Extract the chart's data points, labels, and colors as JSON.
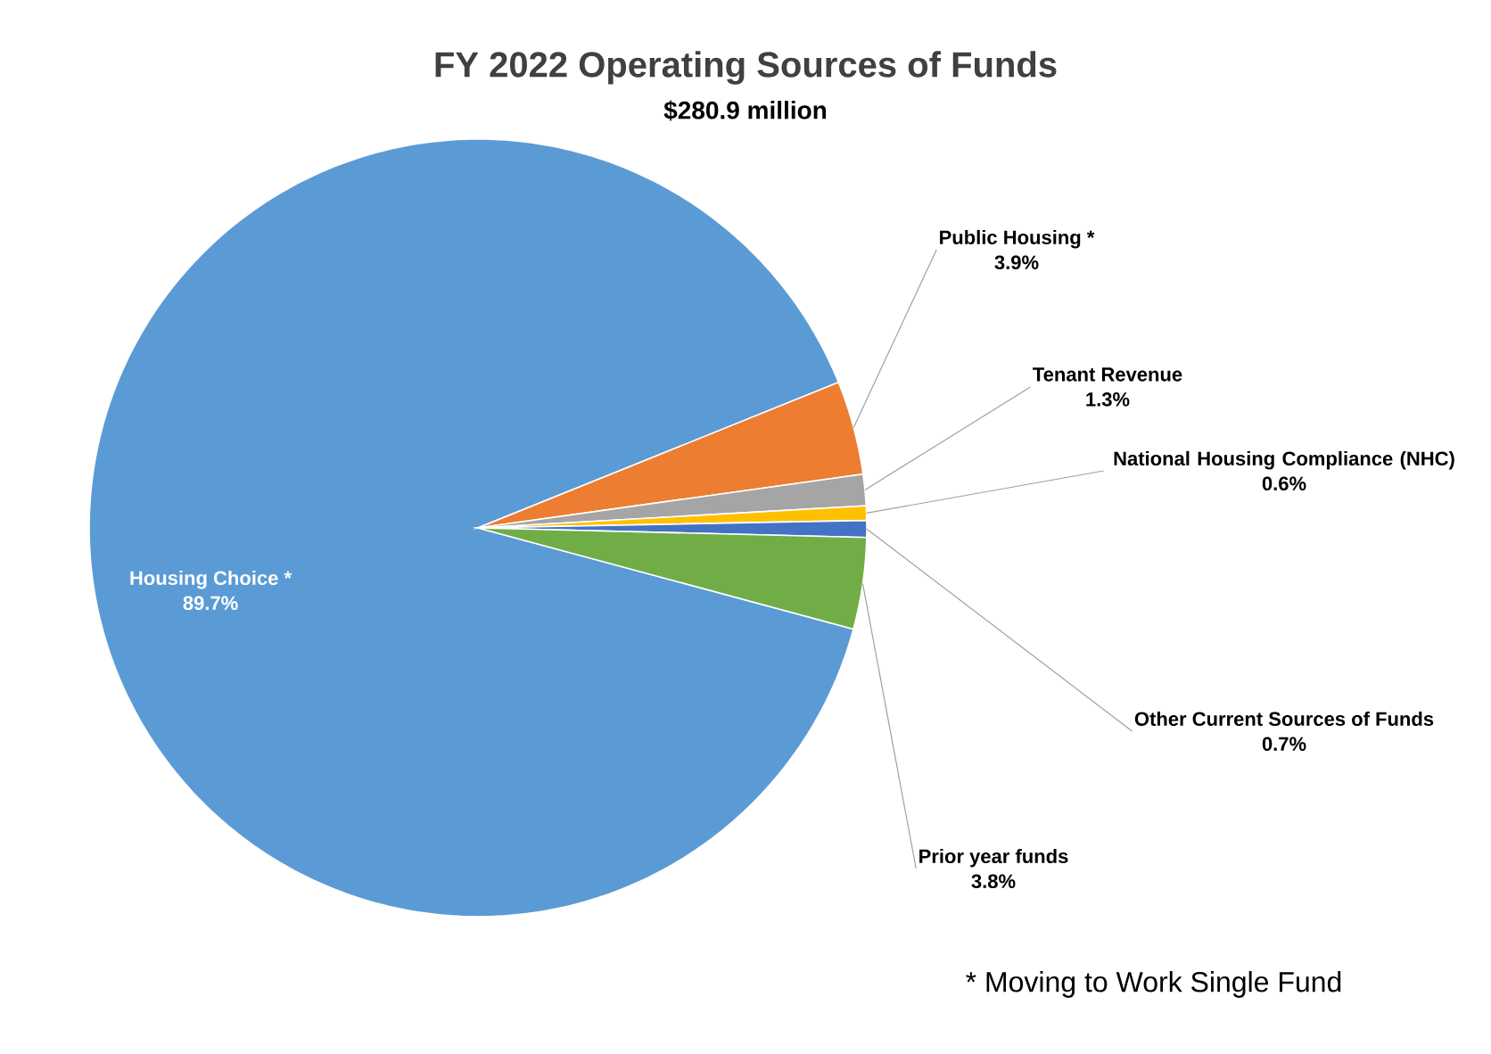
{
  "chart_data": {
    "type": "pie",
    "title": "FY 2022 Operating Sources of Funds",
    "subtitle": "$280.9 million",
    "categories": [
      "Housing Choice *",
      "Public Housing *",
      "Tenant Revenue",
      "National Housing Compliance (NHC)",
      "Other Current Sources of Funds",
      "Prior year funds"
    ],
    "values": [
      89.7,
      3.9,
      1.3,
      0.6,
      0.7,
      3.8
    ],
    "value_labels": [
      "89.7%",
      "3.9%",
      "1.3%",
      "0.6%",
      "0.7%",
      "3.8%"
    ],
    "colors": [
      "#5b9bd5",
      "#ed7d31",
      "#a5a5a5",
      "#ffc000",
      "#4472c4",
      "#70ad47"
    ],
    "annotations": [
      "* Moving to Work Single Fund"
    ]
  }
}
